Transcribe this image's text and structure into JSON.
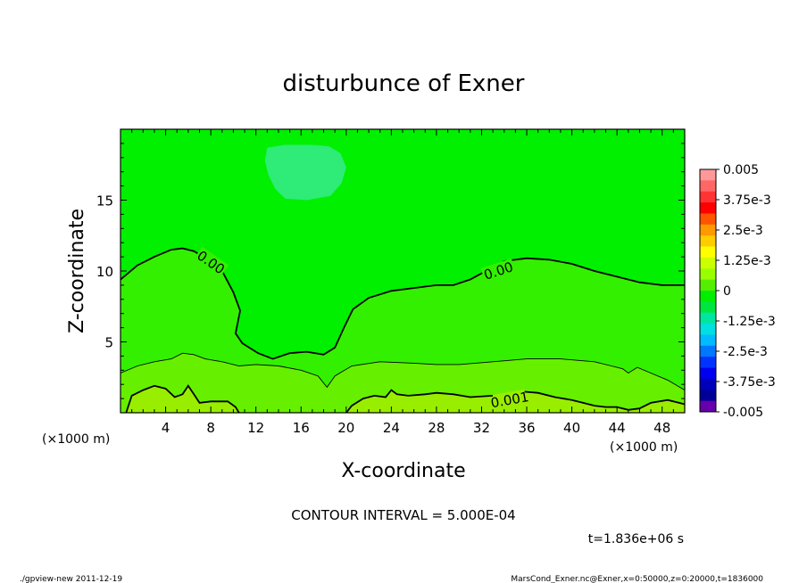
{
  "chart_data": {
    "type": "contour",
    "title": "disturbunce of Exner",
    "xlabel": "X-coordinate",
    "ylabel": "Z-coordinate",
    "x_unit_left": "(×1000 m)",
    "x_unit_right": "(×1000 m)",
    "xlim": [
      0,
      50
    ],
    "ylim": [
      0,
      20
    ],
    "xticks": [
      4,
      8,
      12,
      16,
      20,
      24,
      28,
      32,
      36,
      40,
      44,
      48
    ],
    "yticks": [
      5,
      10,
      15
    ],
    "contour_interval_text": "CONTOUR INTERVAL = 5.000E-04",
    "time_text": "t=1.836e+06 s",
    "contours": [
      {
        "label": "0.00",
        "level": 0.0,
        "points": [
          [
            0,
            9.4
          ],
          [
            1.5,
            10.4
          ],
          [
            3,
            11.0
          ],
          [
            4.5,
            11.5
          ],
          [
            5.5,
            11.6
          ],
          [
            6.5,
            11.4
          ],
          [
            7.8,
            10.8
          ],
          [
            9,
            10.0
          ],
          [
            10,
            8.5
          ],
          [
            10.6,
            7.2
          ],
          [
            10.2,
            5.6
          ],
          [
            10.8,
            4.9
          ],
          [
            12.2,
            4.2
          ],
          [
            13.5,
            3.8
          ],
          [
            15,
            4.2
          ],
          [
            16.5,
            4.3
          ],
          [
            18,
            4.1
          ],
          [
            19,
            4.6
          ],
          [
            19.8,
            6.0
          ],
          [
            20.6,
            7.3
          ],
          [
            22,
            8.1
          ],
          [
            24,
            8.6
          ],
          [
            26,
            8.8
          ],
          [
            28,
            9.0
          ],
          [
            29.5,
            9.0
          ],
          [
            31,
            9.4
          ],
          [
            32.6,
            10.1
          ],
          [
            34,
            10.7
          ],
          [
            36,
            10.9
          ],
          [
            38,
            10.8
          ],
          [
            40,
            10.5
          ],
          [
            42,
            10.0
          ],
          [
            44,
            9.6
          ],
          [
            46,
            9.2
          ],
          [
            48,
            9.0
          ],
          [
            50,
            9.0
          ]
        ]
      },
      {
        "label": "",
        "level": 0.0005,
        "points": [
          [
            0,
            2.8
          ],
          [
            1.5,
            3.3
          ],
          [
            3,
            3.6
          ],
          [
            4.5,
            3.8
          ],
          [
            5.5,
            4.2
          ],
          [
            6.5,
            4.1
          ],
          [
            7.5,
            3.8
          ],
          [
            9,
            3.6
          ],
          [
            10.5,
            3.3
          ],
          [
            12,
            3.4
          ],
          [
            14,
            3.3
          ],
          [
            16,
            3.0
          ],
          [
            17.5,
            2.6
          ],
          [
            18.3,
            1.8
          ],
          [
            19,
            2.6
          ],
          [
            20.5,
            3.3
          ],
          [
            23,
            3.6
          ],
          [
            26,
            3.5
          ],
          [
            28,
            3.4
          ],
          [
            30,
            3.4
          ],
          [
            33,
            3.6
          ],
          [
            36,
            3.8
          ],
          [
            39,
            3.8
          ],
          [
            42,
            3.6
          ],
          [
            43.5,
            3.3
          ],
          [
            44.5,
            3.1
          ],
          [
            45,
            2.8
          ],
          [
            45.8,
            3.2
          ],
          [
            47,
            2.8
          ],
          [
            48.5,
            2.3
          ],
          [
            50,
            1.6
          ]
        ]
      },
      {
        "label": "0.001",
        "level": 0.001,
        "points": [
          [
            0.5,
            0
          ],
          [
            1,
            1.2
          ],
          [
            2,
            1.6
          ],
          [
            3,
            1.9
          ],
          [
            4,
            1.7
          ],
          [
            4.8,
            1.1
          ],
          [
            5.5,
            1.3
          ],
          [
            6,
            1.9
          ],
          [
            6.5,
            1.3
          ],
          [
            7,
            0.7
          ],
          [
            8,
            0.8
          ],
          [
            9.5,
            0.8
          ],
          [
            10.2,
            0.4
          ],
          [
            10.5,
            0
          ]
        ],
        "extra_segments": [
          [
            [
              20,
              0
            ],
            [
              20.5,
              0.5
            ],
            [
              21.5,
              1.0
            ],
            [
              22.5,
              1.2
            ],
            [
              23.5,
              1.1
            ],
            [
              24,
              1.6
            ],
            [
              24.5,
              1.3
            ],
            [
              25.5,
              1.2
            ],
            [
              27,
              1.3
            ],
            [
              28,
              1.4
            ],
            [
              29.5,
              1.3
            ],
            [
              31,
              1.1
            ],
            [
              33,
              1.2
            ],
            [
              34.5,
              1.3
            ],
            [
              35.5,
              1.5
            ],
            [
              37,
              1.4
            ],
            [
              38.5,
              1.1
            ],
            [
              40,
              0.9
            ],
            [
              41,
              0.7
            ],
            [
              42,
              0.5
            ],
            [
              43,
              0.4
            ],
            [
              44,
              0.4
            ],
            [
              45,
              0.2
            ],
            [
              46,
              0.3
            ],
            [
              47,
              0.7
            ],
            [
              48.5,
              0.9
            ],
            [
              50,
              0.6
            ]
          ]
        ]
      }
    ],
    "fill_levels": [
      -0.0005,
      0.0,
      0.0005,
      0.001
    ],
    "fill_colors": {
      "below_neg": "#2eec77",
      "zero_band": "#00f000",
      "band_0_0005": "#33f000",
      "band_0005_001": "#66f000",
      "band_gt_001": "#99ee00"
    },
    "colorbar": {
      "labels": [
        "0.005",
        "3.75e-3",
        "2.5e-3",
        "1.25e-3",
        "0",
        "-1.25e-3",
        "-2.5e-3",
        "-3.75e-3",
        "-0.005"
      ],
      "colors": [
        "#ff9999",
        "#ff6666",
        "#ff3333",
        "#ff0000",
        "#ff5500",
        "#ff9900",
        "#ffcc00",
        "#ffff00",
        "#ccff00",
        "#99ff00",
        "#55ee00",
        "#00ee00",
        "#00e640",
        "#00e6a0",
        "#00e0e0",
        "#00bbff",
        "#0077ff",
        "#0033ff",
        "#0000ee",
        "#0000bb",
        "#000099",
        "#6600aa"
      ]
    }
  },
  "footer": {
    "left_text": "./gpview-new  2011-12-19",
    "right_text": "MarsCond_Exner.nc@Exner,x=0:50000,z=0:20000,t=1836000"
  }
}
